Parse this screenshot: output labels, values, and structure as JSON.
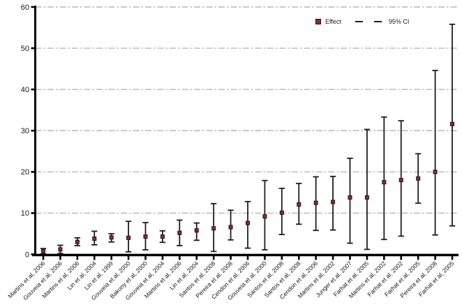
{
  "legend": {
    "effect_label": "Effect",
    "ci_label": "95% CI"
  },
  "chart_data": {
    "type": "scatter",
    "subtype": "error-bar-forest",
    "title": "",
    "xlabel": "",
    "ylabel": "",
    "categories": [
      "Martins et al, 2006",
      "Gouveia et al, 2006",
      "Martins et al, 2006",
      "Lin et al, 2004",
      "Lin et al, 1999",
      "Gouveia et al, 2000",
      "Bakony et al, 2000",
      "Gouveia et al, 2004",
      "Martins et al, 2006",
      "Lin et al, 2004",
      "Santos et al, 2008",
      "Pereira et al, 2008",
      "Cendon et al, 2006",
      "Gouveia et al, 2000",
      "Santos et al, 2008",
      "Santos et al, 2008",
      "Cendon et al, 2006",
      "Martins et al, 2002",
      "Junger et al, 2007",
      "Farhat et al, 2005",
      "Martins et al, 2002",
      "Farhat et al, 2002",
      "Farhat et al, 2005",
      "Pereira et al, 2008",
      "Farhat et al, 2005"
    ],
    "series": [
      {
        "name": "Effect",
        "values": [
          0.8,
          1.2,
          3.0,
          3.8,
          4.1,
          4.0,
          4.3,
          4.3,
          5.2,
          5.8,
          6.3,
          6.6,
          7.6,
          9.2,
          10.1,
          12.1,
          12.5,
          12.7,
          13.8,
          13.8,
          17.5,
          18.0,
          18.4,
          20.0,
          31.6
        ]
      },
      {
        "name": "95% CI lower",
        "values": [
          0.1,
          0.2,
          2.1,
          2.3,
          3.0,
          0.6,
          1.1,
          2.9,
          2.1,
          3.4,
          0.7,
          3.5,
          1.5,
          1.1,
          4.8,
          7.3,
          5.8,
          5.9,
          2.7,
          1.2,
          3.6,
          4.4,
          12.4,
          4.7,
          6.9
        ]
      },
      {
        "name": "95% CI upper",
        "values": [
          1.4,
          2.2,
          4.0,
          5.6,
          5.0,
          8.0,
          7.7,
          5.7,
          8.3,
          7.6,
          12.3,
          10.7,
          12.8,
          17.9,
          16.0,
          17.2,
          18.8,
          18.9,
          23.3,
          30.3,
          33.3,
          32.4,
          24.4,
          44.6,
          55.8
        ]
      }
    ],
    "ylim": [
      0,
      60
    ],
    "ytick_step": 10,
    "ytick_labels": [
      "0",
      "10",
      "20",
      "30",
      "40",
      "50",
      "60"
    ],
    "grid": "horizontal-dashed",
    "legend_position": "top-right",
    "x_label_rotation_deg": 45,
    "colors": {
      "effect_marker": "#8b2e2e",
      "effect_marker_border": "#2b0b0b",
      "ci_bar": "#1d1d1d",
      "gridline": "#a9a9a9",
      "axis": "#000000",
      "text": "#1a1a1a"
    }
  }
}
